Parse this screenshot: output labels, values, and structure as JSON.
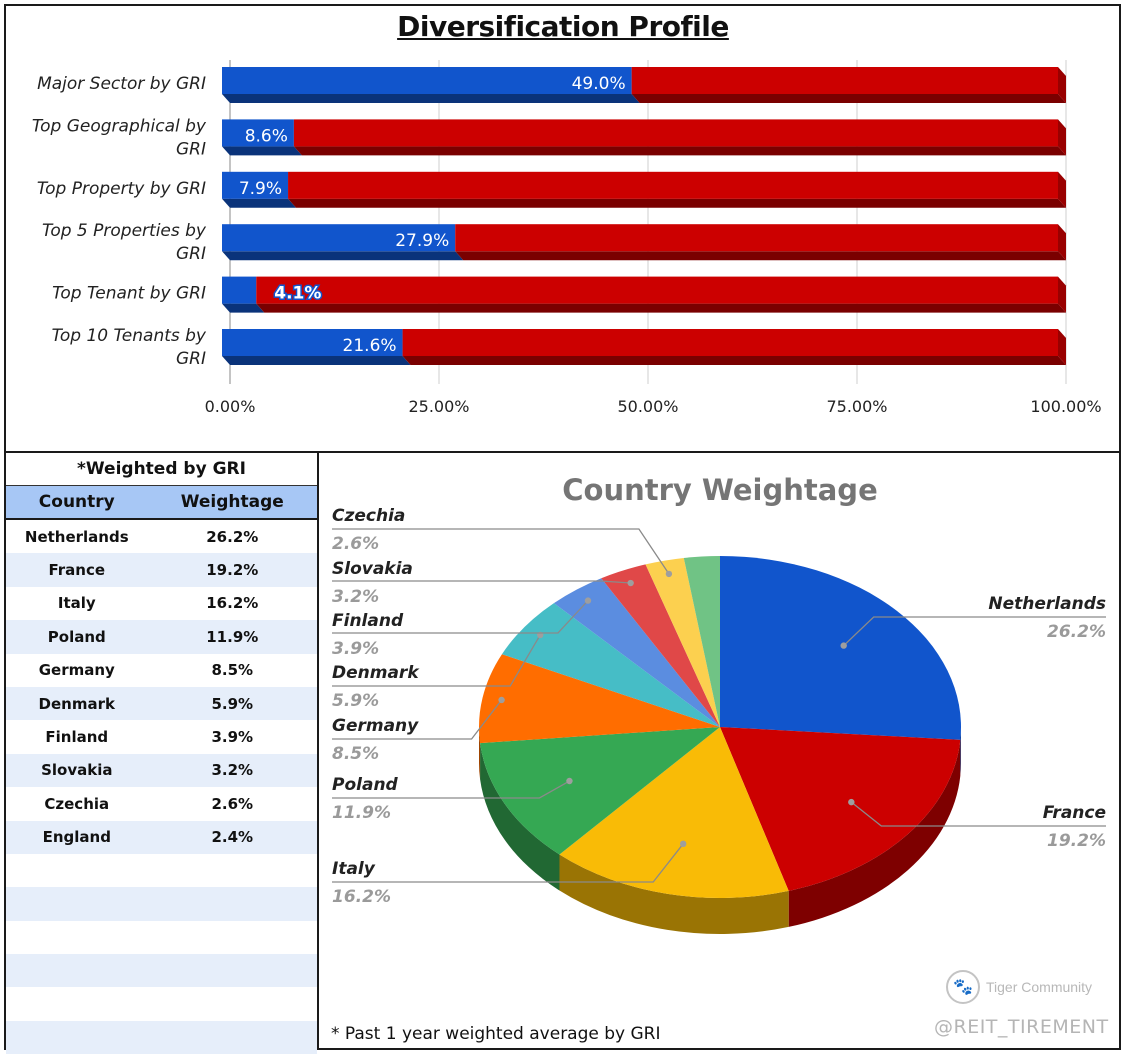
{
  "title": "Diversification Profile",
  "colors": {
    "blue": "#1155cc",
    "red": "#cc0000"
  },
  "chart_data": [
    {
      "type": "bar",
      "orientation": "horizontal-stacked-100",
      "categories": [
        "Major Sector by GRI",
        "Top Geographical by GRI",
        "Top Property by GRI",
        "Top 5 Properties by GRI",
        "Top Tenant by GRI",
        "Top 10 Tenants by GRI"
      ],
      "category_lines": [
        [
          "Major Sector by GRI"
        ],
        [
          "Top Geographical by",
          "GRI"
        ],
        [
          "Top Property by GRI"
        ],
        [
          "Top 5 Properties by",
          "GRI"
        ],
        [
          "Top Tenant by GRI"
        ],
        [
          "Top 10 Tenants by",
          "GRI"
        ]
      ],
      "series": [
        {
          "color": "#1155cc",
          "values": [
            49.0,
            8.6,
            7.9,
            27.9,
            4.1,
            21.6
          ],
          "labels": [
            "49.0%",
            "8.6%",
            "7.9%",
            "27.9%",
            "4.1%",
            "21.6%"
          ]
        },
        {
          "color": "#cc0000",
          "values": [
            51.0,
            91.4,
            92.1,
            72.1,
            95.9,
            78.4
          ]
        }
      ],
      "xlim": [
        0,
        100
      ],
      "xticks": [
        0,
        25,
        50,
        75,
        100
      ],
      "xtick_labels": [
        "0.00%",
        "25.00%",
        "50.00%",
        "75.00%",
        "100.00%"
      ],
      "grid": true
    },
    {
      "type": "pie",
      "title": "Country Weightage",
      "style": "3d",
      "slices": [
        {
          "label": "Netherlands",
          "value": 26.2,
          "display": "26.2%",
          "color": "#1155cc"
        },
        {
          "label": "France",
          "value": 19.2,
          "display": "19.2%",
          "color": "#cc0000"
        },
        {
          "label": "Italy",
          "value": 16.2,
          "display": "16.2%",
          "color": "#f9bb06"
        },
        {
          "label": "Poland",
          "value": 11.9,
          "display": "11.9%",
          "color": "#35a853"
        },
        {
          "label": "Germany",
          "value": 8.5,
          "display": "8.5%",
          "color": "#ff6d00"
        },
        {
          "label": "Denmark",
          "value": 5.9,
          "display": "5.9%",
          "color": "#46bdc6"
        },
        {
          "label": "Finland",
          "value": 3.9,
          "display": "3.9%",
          "color": "#5b8de0"
        },
        {
          "label": "Slovakia",
          "value": 3.2,
          "display": "3.2%",
          "color": "#e04848"
        },
        {
          "label": "Czechia",
          "value": 2.6,
          "display": "2.6%",
          "color": "#fcd04f"
        },
        {
          "label": "England",
          "value": 2.4,
          "display": "",
          "color": "#70c385"
        }
      ]
    }
  ],
  "table": {
    "caption": "*Weighted by GRI",
    "headers": [
      "Country",
      "Weightage"
    ],
    "rows": [
      [
        "Netherlands",
        "26.2%"
      ],
      [
        "France",
        "19.2%"
      ],
      [
        "Italy",
        "16.2%"
      ],
      [
        "Poland",
        "11.9%"
      ],
      [
        "Germany",
        "8.5%"
      ],
      [
        "Denmark",
        "5.9%"
      ],
      [
        "Finland",
        "3.9%"
      ],
      [
        "Slovakia",
        "3.2%"
      ],
      [
        "Czechia",
        "2.6%"
      ],
      [
        "England",
        "2.4%"
      ],
      [
        "",
        ""
      ],
      [
        "",
        ""
      ],
      [
        "",
        ""
      ],
      [
        "",
        ""
      ],
      [
        "",
        ""
      ],
      [
        "",
        ""
      ]
    ]
  },
  "footnote": "* Past 1 year weighted average by GRI",
  "watermark": {
    "brand": "Tiger Community",
    "handle": "@REIT_TIREMENT",
    "logo_icon": "tiger-logo-icon"
  }
}
